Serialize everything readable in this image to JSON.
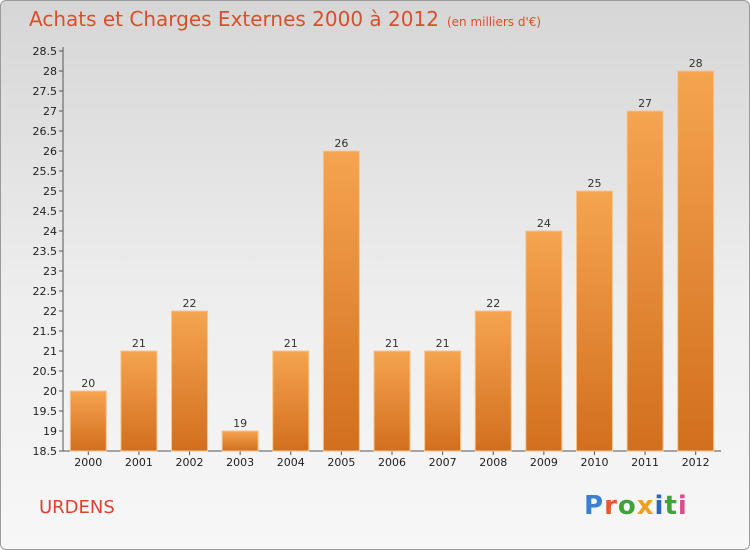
{
  "header": {
    "title": "Achats et Charges Externes 2000 à 2012",
    "subtitle": "(en milliers d'€)"
  },
  "footer": {
    "commune": "URDENS",
    "logo_letters": [
      "P",
      "r",
      "o",
      "x",
      "i",
      "t",
      "i"
    ]
  },
  "colors": {
    "bar_top": "#f5a450",
    "bar_bottom": "#d26f1e",
    "title": "#d8502b",
    "commune": "#e0402f",
    "logo": [
      "#3a7fd1",
      "#e45a2a",
      "#3fa33a",
      "#f0a020",
      "#2a64c4",
      "#3fa33a",
      "#e04a8a"
    ]
  },
  "chart_data": {
    "type": "bar",
    "title": "Achats et Charges Externes 2000 à 2012",
    "subtitle": "(en milliers d'€)",
    "categories": [
      "2000",
      "2001",
      "2002",
      "2003",
      "2004",
      "2005",
      "2006",
      "2007",
      "2008",
      "2009",
      "2010",
      "2011",
      "2012"
    ],
    "values": [
      20,
      21,
      22,
      19,
      21,
      26,
      21,
      21,
      22,
      24,
      25,
      27,
      28
    ],
    "ylim": [
      18.5,
      28.5
    ],
    "yticks": [
      "18.5",
      "19",
      "19.5",
      "20",
      "20.5",
      "21",
      "21.5",
      "22",
      "22.5",
      "23",
      "23.5",
      "24",
      "24.5",
      "25",
      "25.5",
      "26",
      "26.5",
      "27",
      "27.5",
      "28",
      "28.5"
    ],
    "grid": false,
    "legend": "none"
  }
}
